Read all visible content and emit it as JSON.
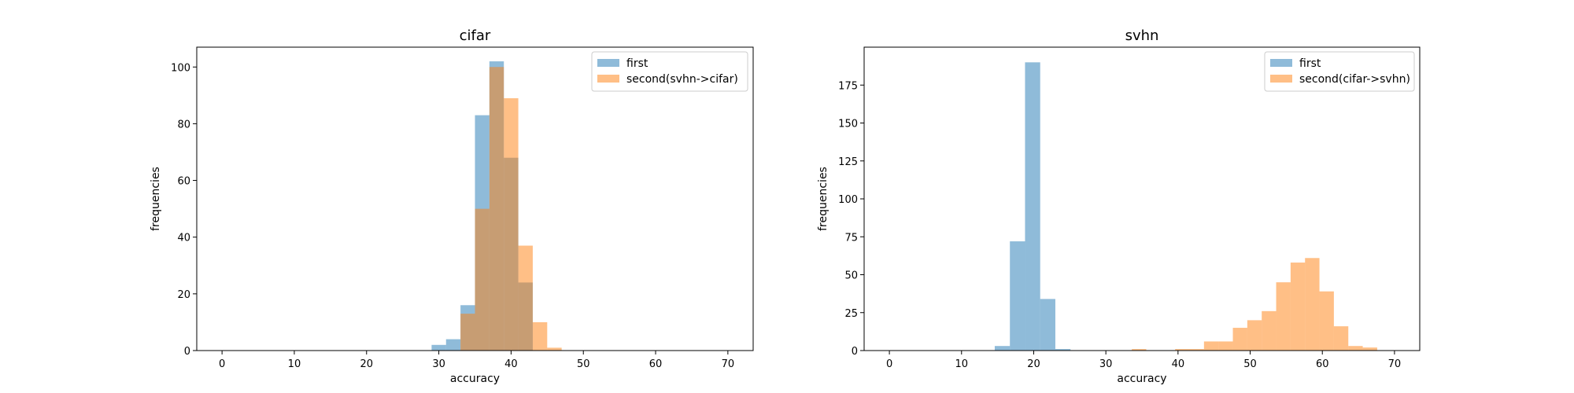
{
  "colors": {
    "first": "#1f77b4",
    "second": "#ff7f0e",
    "axes": "#000000",
    "legend_border": "#cccccc",
    "background": "#ffffff"
  },
  "chart_data": [
    {
      "type": "histogram",
      "title": "cifar",
      "xlabel": "accuracy",
      "ylabel": "frequencies",
      "xlim": [
        -3.5,
        73.5
      ],
      "ylim": [
        0,
        107
      ],
      "xticks": [
        0,
        10,
        20,
        30,
        40,
        50,
        60,
        70
      ],
      "yticks": [
        0,
        20,
        40,
        60,
        80,
        100
      ],
      "bar_alpha": 0.5,
      "legend": "top-right",
      "grid": false,
      "bin_edges": [
        29,
        31,
        33,
        35,
        37,
        39,
        41,
        43,
        45,
        47,
        49,
        51
      ],
      "series": [
        {
          "name": "first",
          "color_key": "first",
          "counts": [
            2,
            4,
            16,
            83,
            102,
            68,
            24,
            0,
            0,
            0,
            0
          ]
        },
        {
          "name": "second(svhn->cifar)",
          "color_key": "second",
          "counts": [
            0,
            0,
            13,
            50,
            100,
            89,
            37,
            10,
            1,
            0,
            0
          ]
        }
      ]
    },
    {
      "type": "histogram",
      "title": "svhn",
      "xlabel": "accuracy",
      "ylabel": "frequencies",
      "xlim": [
        -3.5,
        73.5
      ],
      "ylim": [
        0,
        200
      ],
      "xticks": [
        0,
        10,
        20,
        30,
        40,
        50,
        60,
        70
      ],
      "yticks": [
        0,
        25,
        50,
        75,
        100,
        125,
        150,
        175
      ],
      "bar_alpha": 0.5,
      "legend": "top-right",
      "grid": false,
      "first_bin_edges": [
        14.6,
        16.7,
        18.8,
        20.9,
        23.0,
        25.1
      ],
      "second_bin_edges": [
        33.6,
        35.6,
        37.6,
        39.6,
        41.6,
        43.6,
        45.6,
        47.6,
        49.6,
        51.6,
        53.6,
        55.6,
        57.6,
        59.6,
        61.6,
        63.6,
        65.6,
        67.6
      ],
      "series": [
        {
          "name": "first",
          "color_key": "first",
          "counts": [
            3,
            72,
            190,
            34,
            1
          ]
        },
        {
          "name": "second(cifar->svhn)",
          "color_key": "second",
          "counts": [
            1,
            0,
            0,
            1,
            1,
            6,
            6,
            15,
            20,
            26,
            45,
            58,
            61,
            39,
            16,
            3,
            2
          ]
        }
      ]
    }
  ]
}
